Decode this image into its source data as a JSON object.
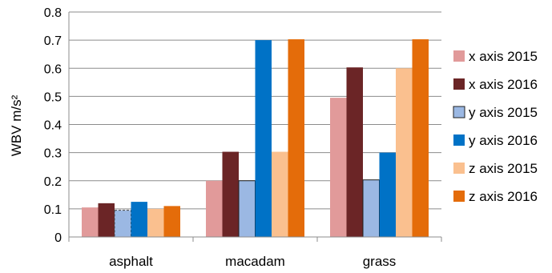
{
  "chart_data": {
    "type": "bar",
    "categories": [
      "asphalt",
      "macadam",
      "grass"
    ],
    "ylabel": "WBV m/s²",
    "xlabel": "",
    "ylim": [
      0,
      0.8
    ],
    "yticks": [
      "0",
      "0.1",
      "0.2",
      "0.3",
      "0.4",
      "0.5",
      "0.6",
      "0.7",
      "0.8"
    ],
    "grid": true,
    "legend_position": "right",
    "series": [
      {
        "name": "x axis 2015",
        "color": "#E19A9A",
        "values": [
          0.105,
          0.2,
          0.495
        ]
      },
      {
        "name": "x axis 2016",
        "color": "#6B2526",
        "values": [
          0.12,
          0.303,
          0.603
        ]
      },
      {
        "name": "y axis 2015",
        "color": "#9BB8E3",
        "values": [
          0.095,
          0.2,
          0.203
        ]
      },
      {
        "name": "y axis 2016",
        "color": "#0072C6",
        "values": [
          0.125,
          0.7,
          0.3
        ]
      },
      {
        "name": "z axis 2015",
        "color": "#FAC08F",
        "values": [
          0.1,
          0.303,
          0.6
        ]
      },
      {
        "name": "z axis 2016",
        "color": "#E46C0A",
        "values": [
          0.11,
          0.703,
          0.703
        ]
      }
    ]
  }
}
